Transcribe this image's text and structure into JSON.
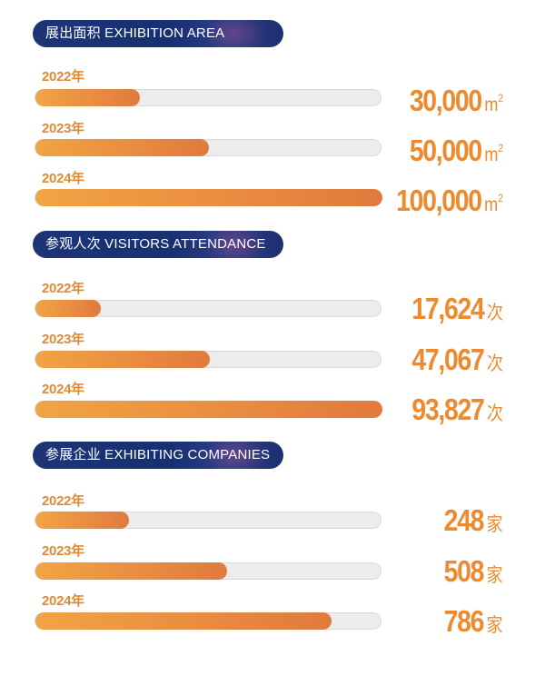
{
  "chart_data": [
    {
      "type": "bar",
      "title": "展出面积 EXHIBITION AREA",
      "categories": [
        "2022年",
        "2023年",
        "2024年"
      ],
      "values": [
        30000,
        50000,
        100000
      ],
      "value_labels": [
        "30,000",
        "50,000",
        "100,000"
      ],
      "unit": "m",
      "unit_sup": "2",
      "max": 100000
    },
    {
      "type": "bar",
      "title": "参观人次 VISITORS ATTENDANCE",
      "categories": [
        "2022年",
        "2023年",
        "2024年"
      ],
      "values": [
        17624,
        47067,
        93827
      ],
      "value_labels": [
        "17,624",
        "47,067",
        "93,827"
      ],
      "unit": "次",
      "unit_sup": "",
      "max": 93827
    },
    {
      "type": "bar",
      "title": "参展企业 EXHIBITING COMPANIES",
      "categories": [
        "2022年",
        "2023年",
        "2024年"
      ],
      "values": [
        248,
        508,
        786
      ],
      "value_labels": [
        "248",
        "508",
        "786"
      ],
      "unit": "家",
      "unit_sup": "",
      "max": 920
    }
  ],
  "colors": {
    "accent": "#ee8a2e",
    "bar_start": "#f0a445",
    "bar_end": "#e07a3e",
    "track": "#ececec",
    "pill": "#1d3577"
  }
}
